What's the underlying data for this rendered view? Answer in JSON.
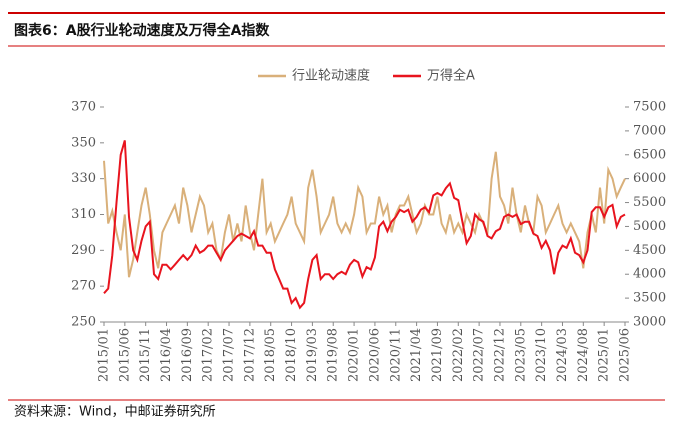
{
  "chart_data": {
    "type": "line",
    "title": "图表6：A股行业轮动速度及万得全A指数",
    "source": "资料来源：Wind，中邮证券研究所",
    "categories": [
      "2015/01",
      null,
      null,
      null,
      null,
      "2015/06",
      null,
      null,
      null,
      null,
      "2015/11",
      null,
      null,
      null,
      null,
      "2016/04",
      null,
      null,
      null,
      null,
      "2016/09",
      null,
      null,
      null,
      null,
      "2017/02",
      null,
      null,
      null,
      null,
      "2017/07",
      null,
      null,
      null,
      null,
      "2017/12",
      null,
      null,
      null,
      null,
      "2018/05",
      null,
      null,
      null,
      null,
      "2018/10",
      null,
      null,
      null,
      null,
      "2019/03",
      null,
      null,
      null,
      null,
      "2019/08",
      null,
      null,
      null,
      null,
      "2020/01",
      null,
      null,
      null,
      null,
      "2020/06",
      null,
      null,
      null,
      null,
      "2020/11",
      null,
      null,
      null,
      null,
      "2021/04",
      null,
      null,
      null,
      null,
      "2021/09",
      null,
      null,
      null,
      null,
      "2022/02",
      null,
      null,
      null,
      null,
      "2022/07",
      null,
      null,
      null,
      null,
      "2022/12",
      null,
      null,
      null,
      null,
      "2023/05",
      null,
      null,
      null,
      null,
      "2023/10",
      null,
      null,
      null,
      null,
      "2024/03",
      null,
      null,
      null,
      null,
      "2024/08",
      null,
      null,
      null,
      null,
      "2025/01",
      null,
      null,
      null,
      null,
      "2025/06"
    ],
    "series": [
      {
        "name": "行业轮动速度",
        "color": "#d9b07a",
        "axis": "y",
        "values": [
          340,
          305,
          312,
          300,
          290,
          310,
          275,
          285,
          300,
          315,
          325,
          310,
          290,
          280,
          300,
          305,
          310,
          315,
          305,
          325,
          315,
          300,
          310,
          320,
          315,
          300,
          305,
          290,
          285,
          300,
          310,
          295,
          305,
          295,
          315,
          300,
          290,
          310,
          330,
          300,
          305,
          295,
          300,
          305,
          310,
          320,
          305,
          300,
          295,
          325,
          335,
          320,
          300,
          305,
          310,
          320,
          305,
          300,
          305,
          300,
          310,
          325,
          320,
          300,
          305,
          305,
          320,
          310,
          315,
          300,
          310,
          315,
          315,
          320,
          310,
          300,
          305,
          315,
          310,
          310,
          320,
          305,
          300,
          310,
          300,
          305,
          300,
          310,
          305,
          300,
          310,
          305,
          300,
          330,
          345,
          320,
          315,
          305,
          325,
          310,
          300,
          315,
          305,
          300,
          320,
          315,
          300,
          305,
          310,
          315,
          305,
          300,
          305,
          300,
          295,
          280,
          300,
          310,
          300,
          325,
          305,
          335,
          330,
          320,
          325,
          330
        ]
      },
      {
        "name": "万得全A",
        "color": "#e8141e",
        "axis": "y2",
        "values": [
          3600,
          3700,
          4400,
          5500,
          6500,
          6800,
          5200,
          4500,
          4300,
          4700,
          5000,
          5100,
          4000,
          3900,
          4200,
          4200,
          4100,
          4200,
          4300,
          4400,
          4300,
          4400,
          4600,
          4450,
          4500,
          4600,
          4600,
          4450,
          4300,
          4500,
          4600,
          4700,
          4800,
          4850,
          4800,
          4750,
          4900,
          4600,
          4600,
          4450,
          4450,
          4100,
          3900,
          3700,
          3700,
          3400,
          3500,
          3300,
          3400,
          3900,
          4300,
          4400,
          3900,
          4000,
          4000,
          3900,
          4000,
          4050,
          4000,
          4200,
          4300,
          4250,
          3950,
          4150,
          4100,
          4350,
          5000,
          5100,
          4900,
          5100,
          5200,
          5350,
          5300,
          5350,
          5100,
          5200,
          5350,
          5400,
          5300,
          5650,
          5700,
          5650,
          5800,
          5900,
          5600,
          5550,
          5100,
          4650,
          4800,
          5250,
          5150,
          5100,
          4800,
          4750,
          4900,
          4950,
          5200,
          5250,
          5200,
          5250,
          5050,
          5100,
          5100,
          4850,
          4800,
          4550,
          4700,
          4500,
          4000,
          4450,
          4600,
          4550,
          4750,
          4450,
          4400,
          4250,
          4500,
          5300,
          5400,
          5400,
          5200,
          5400,
          5450,
          5000,
          5200,
          5250
        ]
      }
    ],
    "ylim": [
      250,
      370
    ],
    "yticks": [
      250,
      270,
      290,
      310,
      330,
      350,
      370
    ],
    "y2lim": [
      3000,
      7500
    ],
    "y2ticks": [
      3000,
      3500,
      4000,
      4500,
      5000,
      5500,
      6000,
      6500,
      7000,
      7500
    ]
  }
}
